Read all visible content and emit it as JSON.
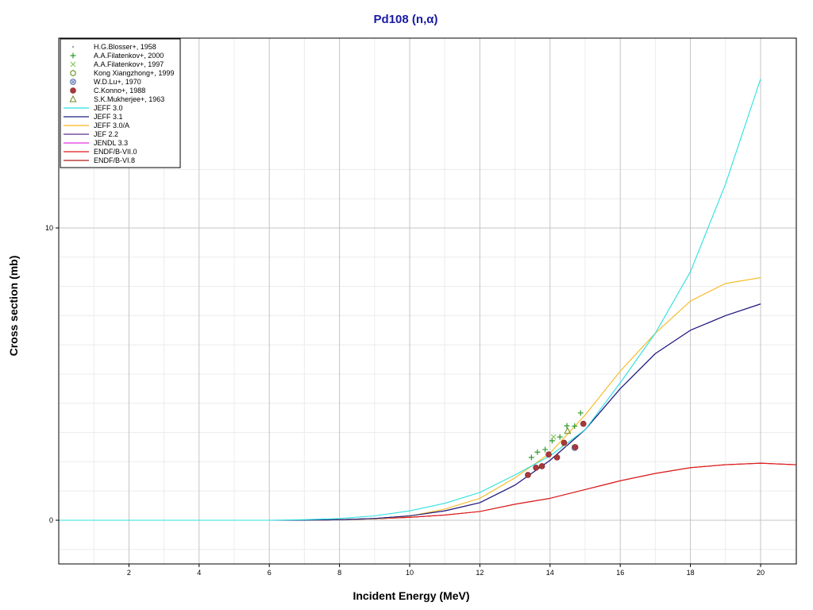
{
  "chart_data": {
    "type": "line",
    "title": "Pd108 (n,α)",
    "xlabel": "Incident Energy (MeV)",
    "ylabel": "Cross section (mb)",
    "xlim": [
      0,
      21
    ],
    "ylim": [
      -1.5,
      13
    ],
    "x_ticks": [
      2,
      4,
      6,
      8,
      10,
      12,
      14,
      16,
      18,
      20
    ],
    "y_ticks": [
      0,
      10
    ],
    "grid": true,
    "legend_position": "top-left",
    "series": [
      {
        "name": "H.G.Blosser+, 1958",
        "kind": "points",
        "marker": "dot",
        "color": "#9aa8c0",
        "points": []
      },
      {
        "name": "A.A.Filatenkov+, 2000",
        "kind": "points",
        "marker": "plus",
        "color": "#2e9b2e",
        "points": [
          [
            13.47,
            2.15
          ],
          [
            13.64,
            2.33
          ],
          [
            13.86,
            2.42
          ],
          [
            14.06,
            2.72
          ],
          [
            14.28,
            2.85
          ],
          [
            14.48,
            3.23
          ],
          [
            14.7,
            3.22
          ],
          [
            14.87,
            3.67
          ]
        ]
      },
      {
        "name": "A.A.Filatenkov+, 1997",
        "kind": "points",
        "marker": "x",
        "color": "#7fc34f",
        "points": [
          [
            14.1,
            2.85
          ],
          [
            14.4,
            2.6
          ]
        ]
      },
      {
        "name": "Kong Xiangzhong+, 1999",
        "kind": "points",
        "marker": "hexagon",
        "color": "#6b8e23",
        "points": [
          [
            14.7,
            2.5
          ]
        ]
      },
      {
        "name": "W.D.Lu+, 1970",
        "kind": "points",
        "marker": "circle-x",
        "color": "#6a7fb5",
        "points": [
          [
            14.7,
            2.48
          ]
        ]
      },
      {
        "name": "C.Konno+, 1988",
        "kind": "points",
        "marker": "filled-circle",
        "color": "#a8383a",
        "points": [
          [
            13.37,
            1.55
          ],
          [
            13.6,
            1.8
          ],
          [
            13.77,
            1.85
          ],
          [
            13.96,
            2.25
          ],
          [
            14.2,
            2.15
          ],
          [
            14.4,
            2.65
          ],
          [
            14.72,
            2.5
          ],
          [
            14.95,
            3.3
          ]
        ]
      },
      {
        "name": "S.K.Mukherjee+, 1963",
        "kind": "points",
        "marker": "triangle",
        "color": "#6b8e23",
        "points": [
          [
            14.5,
            3.05
          ]
        ]
      },
      {
        "name": "JEFF 3.0",
        "kind": "line",
        "color": "#2ee0e0",
        "points": [
          [
            0,
            0
          ],
          [
            6,
            0
          ],
          [
            7,
            0.02
          ],
          [
            8,
            0.06
          ],
          [
            9,
            0.15
          ],
          [
            10,
            0.32
          ],
          [
            11,
            0.58
          ],
          [
            12,
            0.95
          ],
          [
            13,
            1.55
          ],
          [
            14,
            2.2
          ],
          [
            15,
            3.1
          ],
          [
            16,
            4.7
          ],
          [
            17,
            6.4
          ],
          [
            18,
            8.5
          ],
          [
            19,
            11.5
          ],
          [
            20,
            15.1
          ]
        ]
      },
      {
        "name": "JEFF 3.1",
        "kind": "line",
        "color": "#1a237e",
        "points": [
          [
            0,
            0
          ],
          [
            7,
            0
          ],
          [
            8,
            0.02
          ],
          [
            9,
            0.06
          ],
          [
            10,
            0.15
          ],
          [
            11,
            0.32
          ],
          [
            12,
            0.6
          ],
          [
            13,
            1.2
          ],
          [
            14,
            2.05
          ],
          [
            15,
            3.1
          ],
          [
            16,
            4.5
          ],
          [
            17,
            5.7
          ],
          [
            18,
            6.5
          ],
          [
            19,
            7.0
          ],
          [
            20,
            7.4
          ]
        ]
      },
      {
        "name": "JEFF 3.0/A",
        "kind": "line",
        "color": "#f5b81c",
        "points": [
          [
            0,
            0
          ],
          [
            7,
            0
          ],
          [
            8,
            0.02
          ],
          [
            9,
            0.05
          ],
          [
            10,
            0.14
          ],
          [
            11,
            0.38
          ],
          [
            12,
            0.75
          ],
          [
            13,
            1.45
          ],
          [
            14,
            2.3
          ],
          [
            15,
            3.6
          ],
          [
            16,
            5.1
          ],
          [
            17,
            6.4
          ],
          [
            18,
            7.5
          ],
          [
            19,
            8.1
          ],
          [
            20,
            8.3
          ]
        ]
      },
      {
        "name": "JEF 2.2",
        "kind": "line",
        "color": "#5a2d8c",
        "points": [
          [
            0,
            0
          ],
          [
            7,
            0
          ],
          [
            8,
            0.02
          ],
          [
            9,
            0.06
          ],
          [
            10,
            0.15
          ],
          [
            11,
            0.32
          ],
          [
            12,
            0.6
          ],
          [
            13,
            1.2
          ],
          [
            14,
            2.05
          ],
          [
            15,
            3.1
          ],
          [
            16,
            4.5
          ],
          [
            17,
            5.7
          ],
          [
            18,
            6.5
          ],
          [
            19,
            7.0
          ],
          [
            20,
            7.4
          ]
        ]
      },
      {
        "name": "JENDL 3.3",
        "kind": "line",
        "color": "#e233e2",
        "points": [
          [
            0,
            0
          ],
          [
            7,
            0
          ],
          [
            8,
            0.02
          ],
          [
            9,
            0.06
          ],
          [
            10,
            0.15
          ],
          [
            11,
            0.32
          ],
          [
            12,
            0.6
          ],
          [
            13,
            1.2
          ],
          [
            14,
            2.05
          ],
          [
            15,
            3.1
          ],
          [
            16,
            4.5
          ],
          [
            17,
            5.7
          ],
          [
            18,
            6.5
          ],
          [
            19,
            7.0
          ],
          [
            20,
            7.4
          ]
        ]
      },
      {
        "name": "ENDF/B-VII.0",
        "kind": "line",
        "color": "#e01b1b",
        "points": [
          [
            0,
            0
          ],
          [
            7,
            0
          ],
          [
            8,
            0.02
          ],
          [
            9,
            0.05
          ],
          [
            10,
            0.1
          ],
          [
            11,
            0.18
          ],
          [
            12,
            0.3
          ],
          [
            13,
            0.55
          ],
          [
            14,
            0.75
          ],
          [
            15,
            1.05
          ],
          [
            16,
            1.35
          ],
          [
            17,
            1.6
          ],
          [
            18,
            1.8
          ],
          [
            19,
            1.9
          ],
          [
            20,
            1.95
          ],
          [
            21,
            1.9
          ]
        ]
      },
      {
        "name": "ENDF/B-VI.8",
        "kind": "line",
        "color": "#b21b1b",
        "points": [
          [
            0,
            0
          ],
          [
            7,
            0
          ],
          [
            8,
            0.02
          ],
          [
            9,
            0.05
          ],
          [
            10,
            0.1
          ],
          [
            11,
            0.18
          ],
          [
            12,
            0.3
          ],
          [
            13,
            0.55
          ],
          [
            14,
            0.75
          ],
          [
            15,
            1.05
          ],
          [
            16,
            1.35
          ],
          [
            17,
            1.6
          ],
          [
            18,
            1.8
          ],
          [
            19,
            1.9
          ],
          [
            20,
            1.95
          ],
          [
            21,
            1.9
          ]
        ]
      }
    ]
  }
}
